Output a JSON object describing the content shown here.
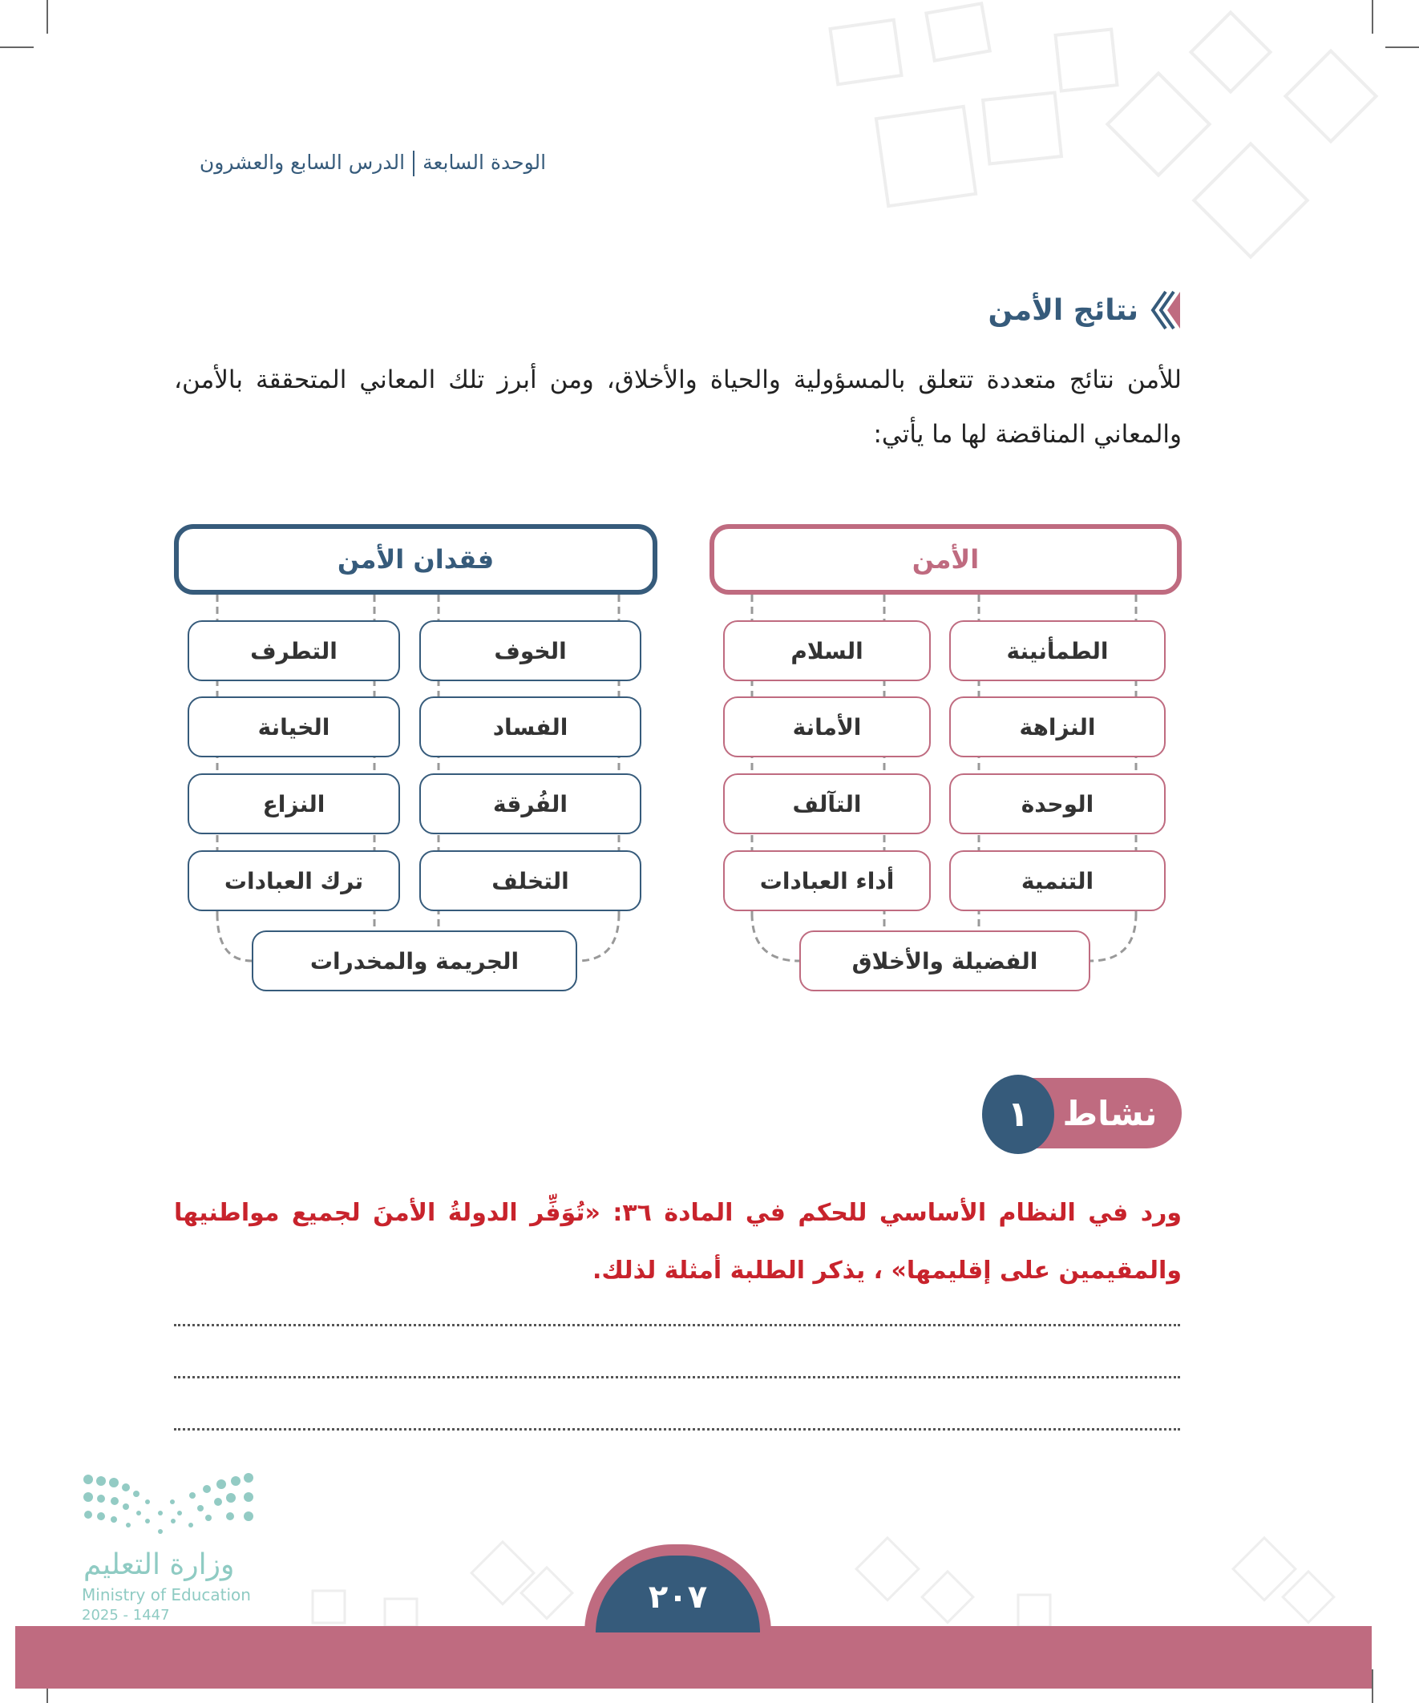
{
  "header": {
    "unit": "الوحدة السابعة",
    "lesson": "الدرس السابع والعشرون"
  },
  "section": {
    "title": "نتائج الأمن",
    "icon": "double-chevron-icon"
  },
  "intro": "للأمن نتائج متعددة تتعلق بالمسؤولية والحياة والأخلاق، ومن أبرز تلك المعاني المتحققة بالأمن، والمعاني المناقضة لها ما يأتي:",
  "diagram": {
    "security": {
      "title": "الأمن",
      "items": [
        "الطمأنينة",
        "السلام",
        "النزاهة",
        "الأمانة",
        "الوحدة",
        "التآلف",
        "التنمية",
        "أداء العبادات"
      ],
      "bottom": "الفضيلة والأخلاق"
    },
    "insecurity": {
      "title": "فقدان الأمن",
      "items": [
        "الخوف",
        "التطرف",
        "الفساد",
        "الخيانة",
        "الفُرقة",
        "النزاع",
        "التخلف",
        "ترك العبادات"
      ],
      "bottom": "الجريمة والمخدرات"
    }
  },
  "activity": {
    "label": "نشاط",
    "number": "١",
    "text": "ورد في النظام الأساسي للحكم في المادة ٣٦: «تُوَفِّر الدولةُ الأمنَ لجميع مواطنيها والمقيمين على إقليمها» ، يذكر الطلبة أمثلة لذلك."
  },
  "footer": {
    "page_number": "٢٠٧",
    "logo_ar": "وزارة التعليم",
    "logo_en": "Ministry of Education",
    "logo_year": "2025 - 1447"
  },
  "colors": {
    "blue": "#365b7b",
    "pink": "#bf6b80",
    "red": "#c8232c",
    "logo": "#8fcbc3"
  }
}
